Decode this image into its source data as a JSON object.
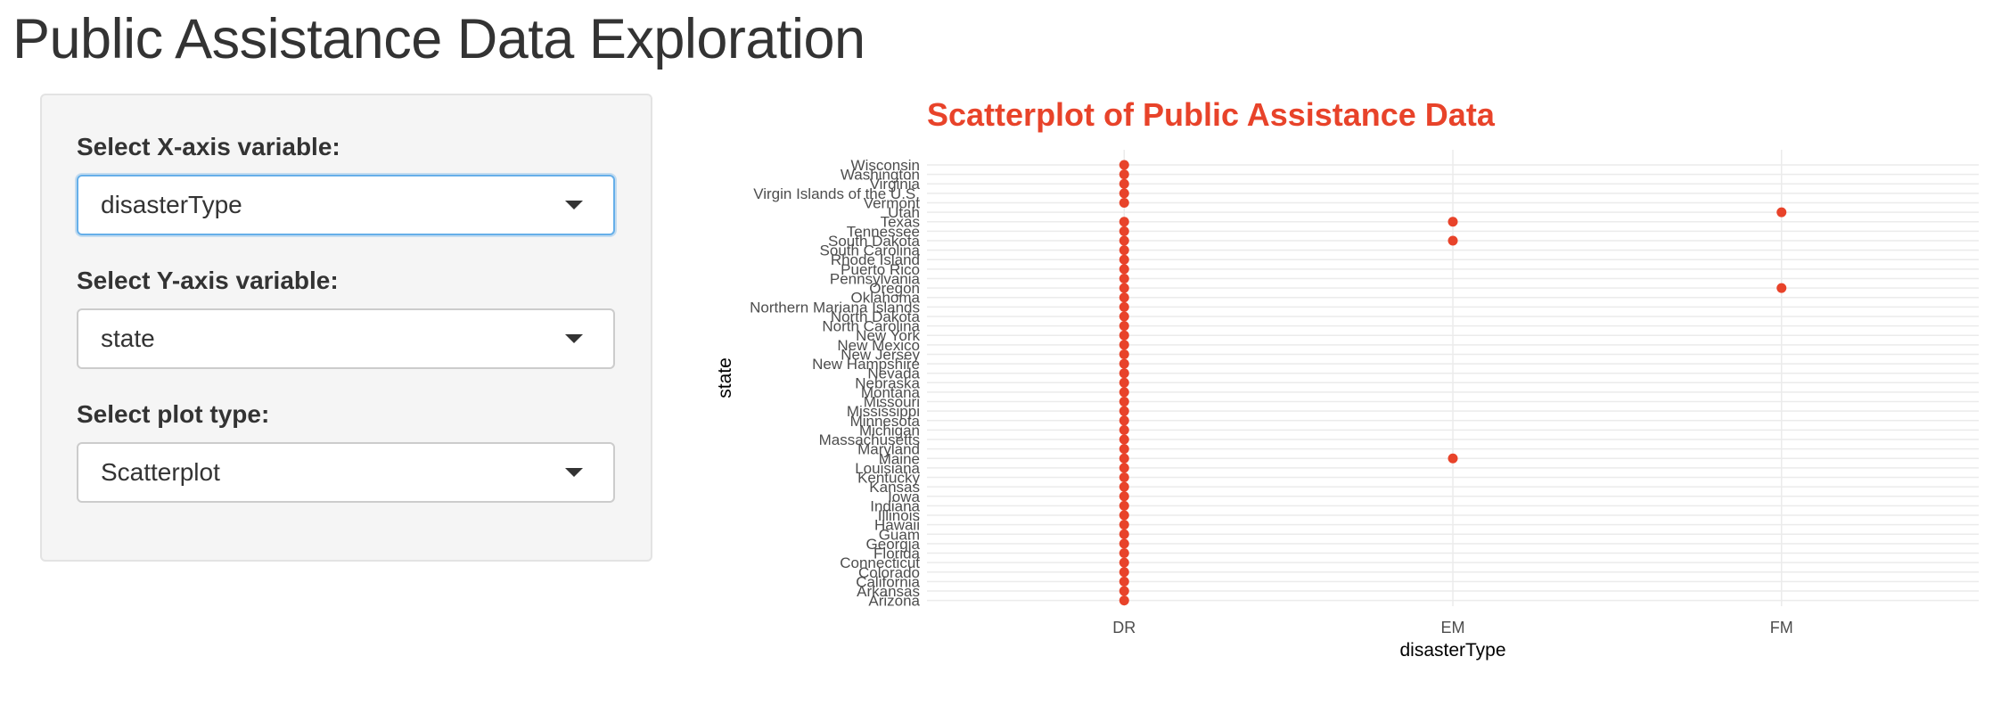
{
  "app": {
    "title": "Public Assistance Data Exploration"
  },
  "sidebar": {
    "x_label": "Select X-axis variable:",
    "x_value": "disasterType",
    "y_label": "Select Y-axis variable:",
    "y_value": "state",
    "plot_label": "Select plot type:",
    "plot_value": "Scatterplot",
    "caret_icon": "chevron-down-icon"
  },
  "colors": {
    "point": "#e8432a",
    "title": "#e8432a",
    "grid": "#ebebeb",
    "axis_text": "#4d4d4d"
  },
  "chart_data": {
    "type": "scatter",
    "title": "Scatterplot of Public Assistance Data",
    "xlabel": "disasterType",
    "ylabel": "state",
    "grid": true,
    "x_categories": [
      "DR",
      "EM",
      "FM"
    ],
    "y_categories": [
      "Arizona",
      "Arkansas",
      "California",
      "Colorado",
      "Connecticut",
      "Florida",
      "Georgia",
      "Guam",
      "Hawaii",
      "Illinois",
      "Indiana",
      "Iowa",
      "Kansas",
      "Kentucky",
      "Louisiana",
      "Maine",
      "Maryland",
      "Massachusetts",
      "Michigan",
      "Minnesota",
      "Mississippi",
      "Missouri",
      "Montana",
      "Nebraska",
      "Nevada",
      "New Hampshire",
      "New Jersey",
      "New Mexico",
      "New York",
      "North Carolina",
      "North Dakota",
      "Northern Mariana Islands",
      "Oklahoma",
      "Oregon",
      "Pennsylvania",
      "Puerto Rico",
      "Rhode Island",
      "South Carolina",
      "South Dakota",
      "Tennessee",
      "Texas",
      "Utah",
      "Vermont",
      "Virgin Islands of the U.S.",
      "Virginia",
      "Washington",
      "Wisconsin"
    ],
    "points": [
      {
        "x": "DR",
        "y": "Arizona"
      },
      {
        "x": "DR",
        "y": "Arkansas"
      },
      {
        "x": "DR",
        "y": "California"
      },
      {
        "x": "DR",
        "y": "Colorado"
      },
      {
        "x": "DR",
        "y": "Connecticut"
      },
      {
        "x": "DR",
        "y": "Florida"
      },
      {
        "x": "DR",
        "y": "Georgia"
      },
      {
        "x": "DR",
        "y": "Guam"
      },
      {
        "x": "DR",
        "y": "Hawaii"
      },
      {
        "x": "DR",
        "y": "Illinois"
      },
      {
        "x": "DR",
        "y": "Indiana"
      },
      {
        "x": "DR",
        "y": "Iowa"
      },
      {
        "x": "DR",
        "y": "Kansas"
      },
      {
        "x": "DR",
        "y": "Kentucky"
      },
      {
        "x": "DR",
        "y": "Louisiana"
      },
      {
        "x": "DR",
        "y": "Maine"
      },
      {
        "x": "DR",
        "y": "Maryland"
      },
      {
        "x": "DR",
        "y": "Massachusetts"
      },
      {
        "x": "DR",
        "y": "Michigan"
      },
      {
        "x": "DR",
        "y": "Minnesota"
      },
      {
        "x": "DR",
        "y": "Mississippi"
      },
      {
        "x": "DR",
        "y": "Missouri"
      },
      {
        "x": "DR",
        "y": "Montana"
      },
      {
        "x": "DR",
        "y": "Nebraska"
      },
      {
        "x": "DR",
        "y": "Nevada"
      },
      {
        "x": "DR",
        "y": "New Hampshire"
      },
      {
        "x": "DR",
        "y": "New Jersey"
      },
      {
        "x": "DR",
        "y": "New Mexico"
      },
      {
        "x": "DR",
        "y": "New York"
      },
      {
        "x": "DR",
        "y": "North Carolina"
      },
      {
        "x": "DR",
        "y": "North Dakota"
      },
      {
        "x": "DR",
        "y": "Northern Mariana Islands"
      },
      {
        "x": "DR",
        "y": "Oklahoma"
      },
      {
        "x": "DR",
        "y": "Oregon"
      },
      {
        "x": "DR",
        "y": "Pennsylvania"
      },
      {
        "x": "DR",
        "y": "Puerto Rico"
      },
      {
        "x": "DR",
        "y": "Rhode Island"
      },
      {
        "x": "DR",
        "y": "South Carolina"
      },
      {
        "x": "DR",
        "y": "South Dakota"
      },
      {
        "x": "DR",
        "y": "Tennessee"
      },
      {
        "x": "DR",
        "y": "Texas"
      },
      {
        "x": "DR",
        "y": "Vermont"
      },
      {
        "x": "DR",
        "y": "Virgin Islands of the U.S."
      },
      {
        "x": "DR",
        "y": "Virginia"
      },
      {
        "x": "DR",
        "y": "Washington"
      },
      {
        "x": "DR",
        "y": "Wisconsin"
      },
      {
        "x": "EM",
        "y": "Maine"
      },
      {
        "x": "EM",
        "y": "South Dakota"
      },
      {
        "x": "EM",
        "y": "Texas"
      },
      {
        "x": "FM",
        "y": "Oregon"
      },
      {
        "x": "FM",
        "y": "Utah"
      }
    ]
  }
}
